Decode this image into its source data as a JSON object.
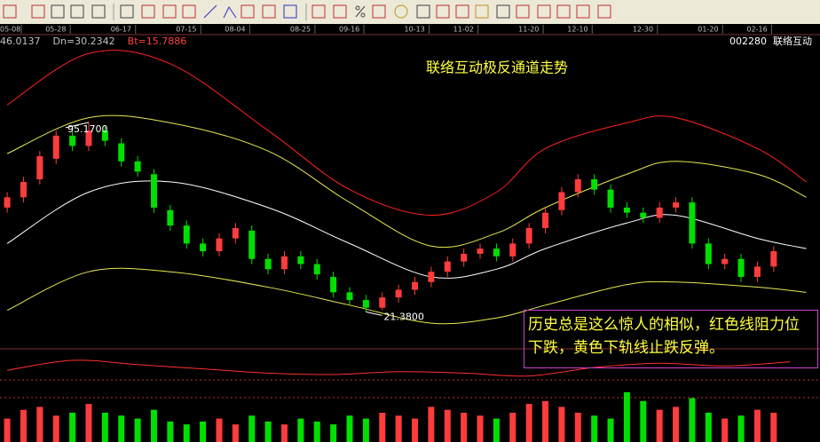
{
  "chart_data": [
    {
      "type": "candlestick",
      "title": "联络互动极反通道走势",
      "stock_code": "002280",
      "stock_name": "联络互动",
      "info": [
        "46.0137",
        "Dn=30.2342",
        "Bt=15.7886"
      ],
      "info_colors": [
        "#c0c0c0",
        "#c0c0c0",
        "#ff4040"
      ],
      "annotation": "历史总是这么惊人的相似，红色线阻力位下跌，黄色下轨线止跌反弹。",
      "xlim": [
        -0.44,
        49.84
      ],
      "ylim": [
        7,
        129
      ],
      "xticks": [
        {
          "value": 0,
          "label": "05-08"
        },
        {
          "value": 3,
          "label": "05-28"
        },
        {
          "value": 7,
          "label": "06-17"
        },
        {
          "value": 11,
          "label": "07-15"
        },
        {
          "value": 14,
          "label": "08-04"
        },
        {
          "value": 18,
          "label": "08-25"
        },
        {
          "value": 21,
          "label": "09-16"
        },
        {
          "value": 25,
          "label": "10-13"
        },
        {
          "value": 28,
          "label": "11-02"
        },
        {
          "value": 32,
          "label": "11-20"
        },
        {
          "value": 35,
          "label": "12-10"
        },
        {
          "value": 39,
          "label": "12-30"
        },
        {
          "value": 43,
          "label": "01-20"
        },
        {
          "value": 46,
          "label": "02-16"
        }
      ],
      "up_color": "#ff3c3c",
      "down_color": "#00e000",
      "open": [
        62,
        66,
        73,
        81,
        90,
        86,
        92,
        87,
        80,
        75,
        61,
        55,
        48,
        45,
        50,
        53,
        42,
        38,
        43,
        40,
        35,
        29,
        26,
        23,
        27,
        30,
        33,
        37,
        41,
        44,
        46,
        43,
        48,
        54,
        61,
        68,
        73,
        69,
        62,
        60,
        58,
        62,
        64,
        48,
        40,
        42,
        35,
        39
      ],
      "high": [
        68,
        74,
        84,
        92,
        92,
        95.17,
        94,
        89,
        82,
        77,
        63,
        57,
        50,
        52,
        56,
        55,
        44,
        45,
        45,
        42,
        37,
        31,
        28,
        29,
        32,
        35,
        39,
        43,
        46,
        48,
        48,
        50,
        56,
        62,
        70,
        75,
        75,
        71,
        64,
        62,
        64,
        66,
        66,
        50,
        44,
        44,
        41,
        47
      ],
      "low": [
        60,
        64,
        71,
        79,
        84,
        84,
        86,
        78,
        74,
        60,
        53,
        46,
        43,
        43,
        48,
        40,
        36,
        36,
        38,
        34,
        27,
        24,
        21.38,
        22,
        25,
        28,
        31,
        35,
        39,
        42,
        41,
        41,
        46,
        52,
        59,
        66,
        67,
        60,
        58,
        56,
        56,
        60,
        46,
        38,
        38,
        33,
        33,
        37
      ],
      "close": [
        66,
        72,
        82,
        90,
        86,
        92,
        88,
        80,
        76,
        62,
        55,
        48,
        45,
        50,
        54,
        42,
        38,
        43,
        40,
        36,
        29,
        26,
        23,
        27,
        30,
        33,
        37,
        41,
        44,
        46,
        43,
        48,
        54,
        60,
        68,
        73,
        69,
        62,
        60,
        58,
        62,
        64,
        48,
        40,
        42,
        35,
        39,
        45
      ],
      "extremes": [
        {
          "value": 95.17,
          "label": "95.1700"
        },
        {
          "value": 21.38,
          "label": "21.3800"
        }
      ],
      "lines": [
        {
          "color": "#ff2020",
          "x": [
            0,
            5,
            10,
            16,
            21,
            26,
            30,
            33,
            38,
            41,
            46,
            49
          ],
          "values": [
            102,
            122,
            118,
            92,
            69,
            59,
            68,
            85,
            95,
            97,
            85,
            72
          ]
        },
        {
          "color": "#e8e850",
          "x": [
            0,
            5,
            10,
            16,
            21,
            26,
            30,
            33,
            38,
            41,
            46,
            49
          ],
          "values": [
            83,
            97,
            95,
            84,
            64,
            47,
            52,
            62,
            75,
            80,
            75,
            66
          ]
        },
        {
          "color": "#ffffff",
          "x": [
            0,
            5,
            10,
            16,
            21,
            26,
            30,
            33,
            38,
            41,
            46,
            49
          ],
          "values": [
            48,
            68,
            72,
            62,
            48,
            35,
            38,
            46,
            56,
            59,
            50,
            46
          ]
        },
        {
          "color": "#e8e850",
          "x": [
            0,
            5,
            10,
            16,
            21,
            26,
            30,
            33,
            38,
            41,
            46,
            49
          ],
          "values": [
            22,
            37,
            37,
            31,
            24,
            17,
            19,
            24,
            32,
            33,
            31,
            29
          ]
        }
      ]
    },
    {
      "type": "line",
      "color": "#ff3030",
      "ylim": [
        0,
        100
      ],
      "x": [
        0,
        4,
        8,
        12,
        16,
        20,
        24,
        28,
        32,
        36,
        40,
        44,
        48
      ],
      "values": [
        40,
        75,
        60,
        45,
        30,
        25,
        35,
        30,
        20,
        50,
        65,
        55,
        70
      ]
    },
    {
      "type": "bar",
      "ylim": [
        0,
        100
      ],
      "values": [
        40,
        55,
        60,
        45,
        50,
        65,
        50,
        45,
        40,
        55,
        35,
        30,
        35,
        40,
        30,
        45,
        35,
        30,
        40,
        35,
        30,
        45,
        40,
        50,
        45,
        40,
        60,
        55,
        50,
        45,
        40,
        50,
        65,
        70,
        60,
        50,
        45,
        40,
        85,
        70,
        55,
        60,
        75,
        50,
        40,
        45,
        55,
        50
      ]
    }
  ]
}
